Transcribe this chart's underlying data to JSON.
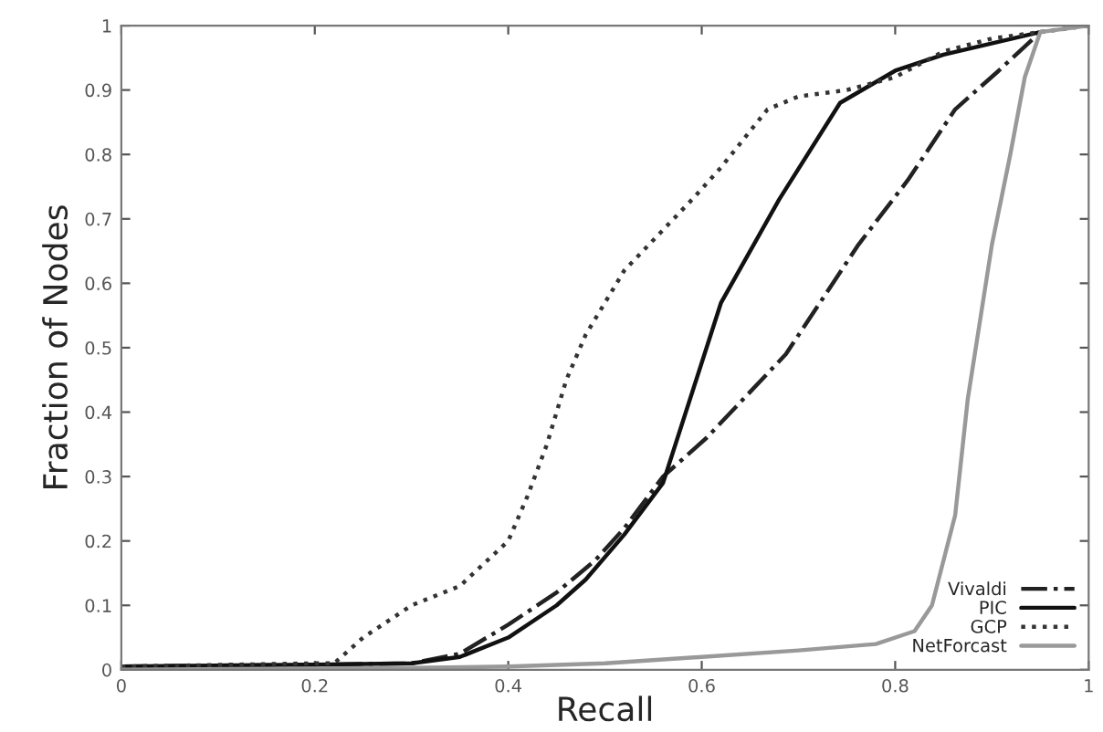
{
  "chart_data": {
    "type": "line",
    "xlabel": "Recall",
    "ylabel": "Fraction of Nodes",
    "xlim": [
      0,
      1
    ],
    "ylim": [
      0,
      1
    ],
    "xticks": [
      0,
      0.2,
      0.4,
      0.6,
      0.8,
      1
    ],
    "yticks": [
      0,
      0.1,
      0.2,
      0.3,
      0.4,
      0.5,
      0.6,
      0.7,
      0.8,
      0.9,
      1
    ],
    "grid": false,
    "legend": "bottom right",
    "marker": "none",
    "series": [
      {
        "name": "Vivaldi",
        "color": "#222222",
        "line_style": "dashdot",
        "x": [
          0,
          0.2,
          0.3,
          0.35,
          0.4,
          0.45,
          0.49,
          0.52,
          0.56,
          0.605,
          0.687,
          0.762,
          0.813,
          0.862,
          0.907,
          0.95
        ],
        "values": [
          0.005,
          0.008,
          0.01,
          0.025,
          0.07,
          0.12,
          0.17,
          0.22,
          0.3,
          0.36,
          0.49,
          0.66,
          0.76,
          0.87,
          0.93,
          0.99
        ]
      },
      {
        "name": "PIC",
        "color": "#111111",
        "line_style": "solid",
        "x": [
          0,
          0.2,
          0.3,
          0.35,
          0.4,
          0.45,
          0.48,
          0.52,
          0.56,
          0.62,
          0.68,
          0.743,
          0.8,
          0.85,
          0.95
        ],
        "values": [
          0.005,
          0.008,
          0.01,
          0.02,
          0.05,
          0.1,
          0.14,
          0.21,
          0.29,
          0.57,
          0.73,
          0.88,
          0.93,
          0.955,
          0.99
        ]
      },
      {
        "name": "GCP",
        "color": "#333333",
        "line_style": "dotted",
        "x": [
          0,
          0.2,
          0.22,
          0.25,
          0.3,
          0.35,
          0.4,
          0.42,
          0.44,
          0.46,
          0.48,
          0.5,
          0.52,
          0.59,
          0.62,
          0.668,
          0.7,
          0.75,
          0.8,
          0.85,
          0.9,
          0.95,
          1
        ],
        "values": [
          0.005,
          0.01,
          0.01,
          0.05,
          0.1,
          0.13,
          0.2,
          0.27,
          0.35,
          0.45,
          0.52,
          0.57,
          0.62,
          0.73,
          0.78,
          0.87,
          0.89,
          0.9,
          0.92,
          0.96,
          0.98,
          0.99,
          1
        ]
      },
      {
        "name": "NetForcast",
        "color": "#999999",
        "line_style": "solid",
        "x": [
          0,
          0.3,
          0.4,
          0.5,
          0.6,
          0.7,
          0.78,
          0.82,
          0.838,
          0.862,
          0.875,
          0.9,
          0.919,
          0.934,
          0.95,
          1
        ],
        "values": [
          0,
          0.003,
          0.005,
          0.01,
          0.02,
          0.03,
          0.04,
          0.06,
          0.1,
          0.24,
          0.42,
          0.66,
          0.8,
          0.92,
          0.99,
          1
        ]
      }
    ]
  }
}
